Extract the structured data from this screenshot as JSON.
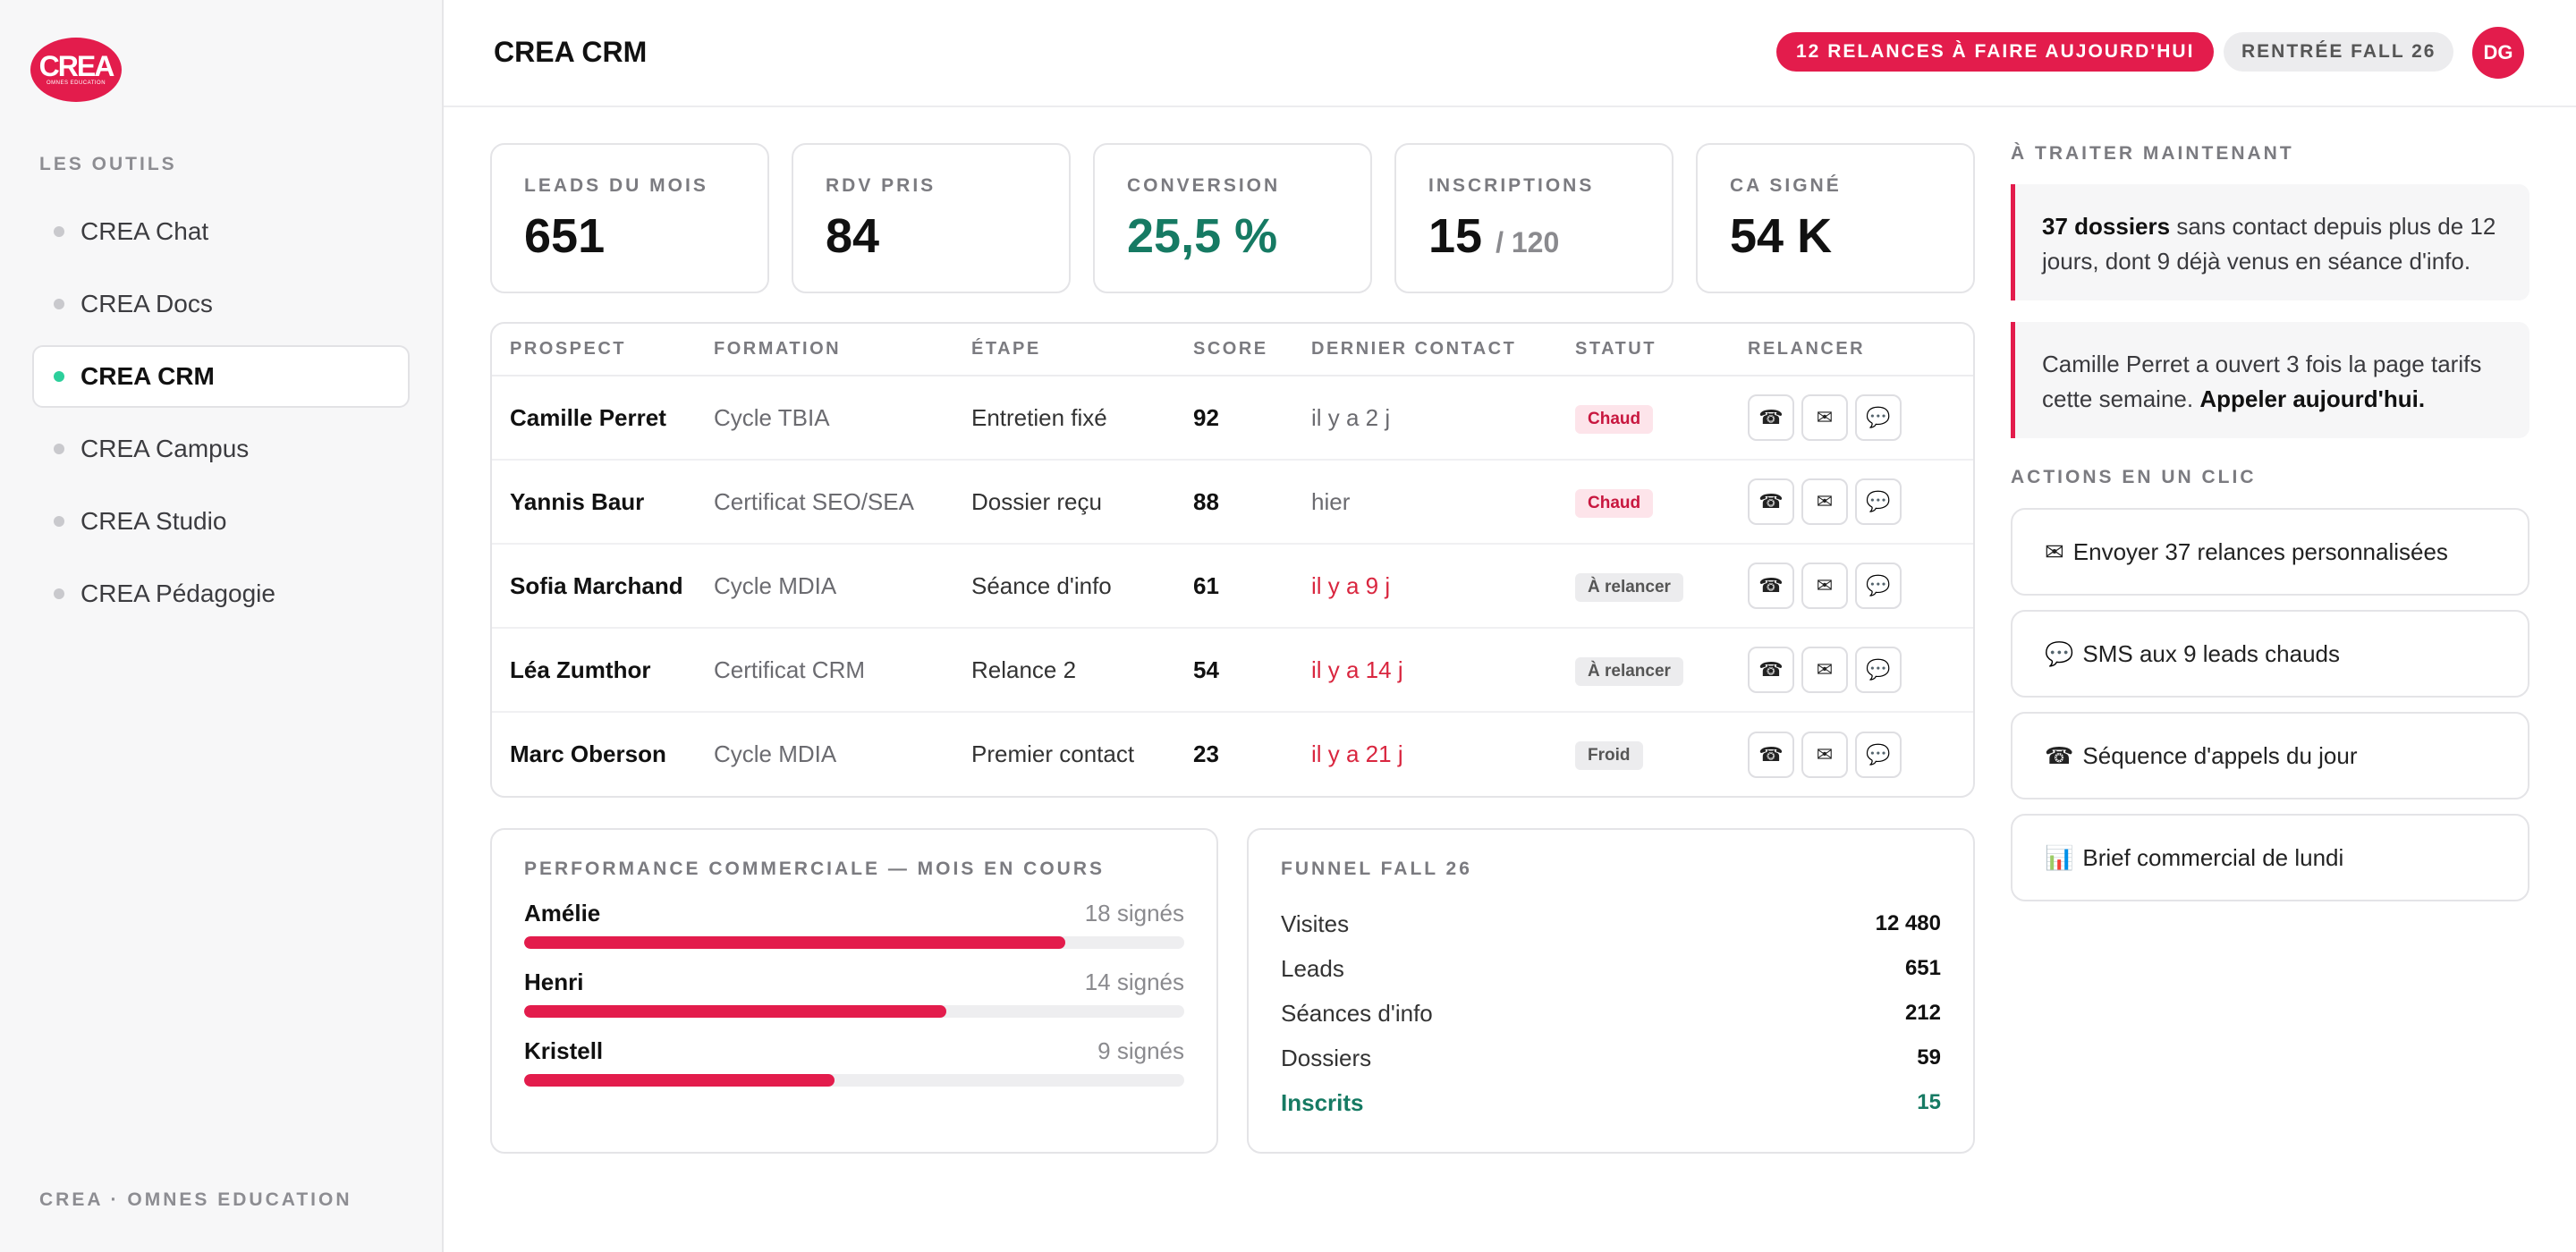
{
  "sidebar": {
    "logo": {
      "main": "CREA",
      "sub": "OMNES EDUCATION"
    },
    "heading": "LES OUTILS",
    "items": [
      {
        "label": "CREA Chat",
        "active": false
      },
      {
        "label": "CREA Docs",
        "active": false
      },
      {
        "label": "CREA CRM",
        "active": true
      },
      {
        "label": "CREA Campus",
        "active": false
      },
      {
        "label": "CREA Studio",
        "active": false
      },
      {
        "label": "CREA Pédagogie",
        "active": false
      }
    ],
    "footer": "CREA · OMNES EDUCATION"
  },
  "header": {
    "title": "CREA CRM",
    "alert_badge": "12 RELANCES À FAIRE AUJOURD'HUI",
    "season_badge": "RENTRÉE FALL 26",
    "avatar_initials": "DG"
  },
  "kpis": [
    {
      "label": "LEADS DU MOIS",
      "value": "651",
      "sub": ""
    },
    {
      "label": "RDV PRIS",
      "value": "84",
      "sub": ""
    },
    {
      "label": "CONVERSION",
      "value": "25,5 %",
      "sub": ""
    },
    {
      "label": "INSCRIPTIONS",
      "value": "15",
      "sub": "/ 120"
    },
    {
      "label": "CA SIGNÉ",
      "value": "54 K",
      "sub": ""
    }
  ],
  "table": {
    "columns": [
      "PROSPECT",
      "FORMATION",
      "ÉTAPE",
      "SCORE",
      "DERNIER CONTACT",
      "STATUT",
      "RELANCER"
    ],
    "rows": [
      {
        "prospect": "Camille Perret",
        "formation": "Cycle TBIA",
        "etape": "Entretien fixé",
        "score": "92",
        "contact": "il y a 2 j",
        "statut": "Chaud"
      },
      {
        "prospect": "Yannis Baur",
        "formation": "Certificat SEO/SEA",
        "etape": "Dossier reçu",
        "score": "88",
        "contact": "hier",
        "statut": "Chaud"
      },
      {
        "prospect": "Sofia Marchand",
        "formation": "Cycle MDIA",
        "etape": "Séance d'info",
        "score": "61",
        "contact": "il y a 9 j",
        "statut": "À relancer"
      },
      {
        "prospect": "Léa Zumthor",
        "formation": "Certificat CRM",
        "etape": "Relance 2",
        "score": "54",
        "contact": "il y a 14 j",
        "statut": "À relancer"
      },
      {
        "prospect": "Marc Oberson",
        "formation": "Cycle MDIA",
        "etape": "Premier contact",
        "score": "23",
        "contact": "il y a 21 j",
        "statut": "Froid"
      }
    ],
    "action_icons": [
      "phone-icon",
      "mail-icon",
      "chat-icon"
    ]
  },
  "performance": {
    "heading": "PERFORMANCE COMMERCIALE — MOIS EN COURS",
    "rows": [
      {
        "name": "Amélie",
        "value_label": "18 signés",
        "value": 18,
        "fill_fraction": 0.82
      },
      {
        "name": "Henri",
        "value_label": "14 signés",
        "value": 14,
        "fill_fraction": 0.64
      },
      {
        "name": "Kristell",
        "value_label": "9 signés",
        "value": 9,
        "fill_fraction": 0.47
      }
    ]
  },
  "funnel": {
    "heading": "FUNNEL FALL 26",
    "rows": [
      {
        "label": "Visites",
        "value": "12 480"
      },
      {
        "label": "Leads",
        "value": "651"
      },
      {
        "label": "Séances d'info",
        "value": "212"
      },
      {
        "label": "Dossiers",
        "value": "59"
      },
      {
        "label": "Inscrits",
        "value": "15"
      }
    ]
  },
  "right": {
    "todo_heading": "À TRAITER MAINTENANT",
    "alert1": {
      "bold": "37 dossiers",
      "text": " sans contact depuis plus de 12 jours, dont 9 déjà venus en séance d'info."
    },
    "alert2": {
      "text": "Camille Perret a ouvert 3 fois la page tarifs cette semaine. ",
      "bold": "Appeler aujourd'hui."
    },
    "actions_heading": "ACTIONS EN UN CLIC",
    "actions": [
      {
        "icon": "mail-icon",
        "glyph": "✉",
        "label": "Envoyer 37 relances personnalisées"
      },
      {
        "icon": "chat-icon",
        "glyph": "💬",
        "label": "SMS aux 9 leads chauds"
      },
      {
        "icon": "phone-icon",
        "glyph": "☎",
        "label": "Séquence d'appels du jour"
      },
      {
        "icon": "chart-icon",
        "glyph": "📊",
        "label": "Brief commercial de lundi"
      }
    ]
  },
  "colors": {
    "accent": "#e31c4c",
    "success": "#167a63",
    "active_dot": "#2ccf9b"
  }
}
